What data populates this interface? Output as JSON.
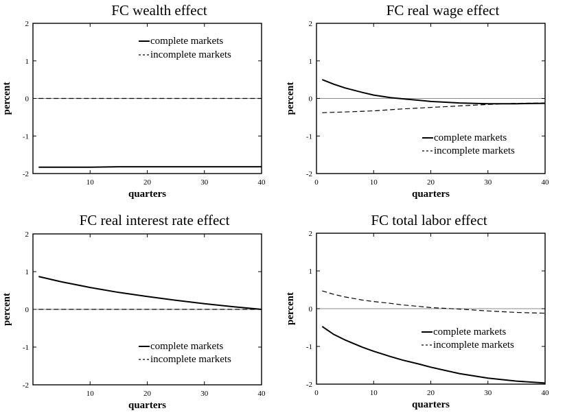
{
  "chart_data": [
    {
      "type": "line",
      "title": "FC wealth effect",
      "xlabel": "quarters",
      "ylabel": "percent",
      "xlim": [
        0,
        40
      ],
      "ylim": [
        -2,
        2
      ],
      "xticks": [
        "10",
        "20",
        "30",
        "40"
      ],
      "yticks": [
        "2",
        "1",
        "0",
        "-1",
        "-2"
      ],
      "legend_position": "top-right",
      "legend": [
        "complete markets",
        "incomplete markets"
      ],
      "series": [
        {
          "name": "complete markets",
          "style": "solid",
          "x": [
            1,
            5,
            10,
            15,
            20,
            25,
            30,
            35,
            40
          ],
          "y": [
            -1.83,
            -1.83,
            -1.83,
            -1.82,
            -1.82,
            -1.82,
            -1.82,
            -1.82,
            -1.82
          ]
        },
        {
          "name": "incomplete markets",
          "style": "dashed",
          "x": [
            1,
            5,
            10,
            15,
            20,
            25,
            30,
            35,
            40
          ],
          "y": [
            0,
            0,
            0,
            0,
            0,
            0,
            0,
            0,
            0
          ]
        }
      ]
    },
    {
      "type": "line",
      "title": "FC real wage effect",
      "xlabel": "quarters",
      "ylabel": "percent",
      "xlim": [
        0,
        40
      ],
      "ylim": [
        -2,
        2
      ],
      "xticks": [
        "0",
        "10",
        "20",
        "30",
        "40"
      ],
      "yticks": [
        "2",
        "1",
        "0",
        "-1",
        "-2"
      ],
      "legend_position": "bottom-right",
      "legend": [
        "complete markets",
        "incomplete markets"
      ],
      "series": [
        {
          "name": "complete markets",
          "style": "solid",
          "x": [
            1,
            3,
            5,
            8,
            10,
            13,
            15,
            18,
            20,
            25,
            30,
            35,
            40
          ],
          "y": [
            0.5,
            0.38,
            0.28,
            0.16,
            0.09,
            0.02,
            -0.01,
            -0.05,
            -0.08,
            -0.12,
            -0.14,
            -0.14,
            -0.13
          ]
        },
        {
          "name": "incomplete markets",
          "style": "dashed",
          "x": [
            1,
            5,
            10,
            15,
            20,
            25,
            30,
            35,
            40
          ],
          "y": [
            -0.38,
            -0.36,
            -0.33,
            -0.28,
            -0.24,
            -0.2,
            -0.16,
            -0.13,
            -0.12
          ]
        }
      ]
    },
    {
      "type": "line",
      "title": "FC real interest rate effect",
      "xlabel": "quarters",
      "ylabel": "percent",
      "xlim": [
        0,
        40
      ],
      "ylim": [
        -2,
        2
      ],
      "xticks": [
        "10",
        "20",
        "30",
        "40"
      ],
      "yticks": [
        "2",
        "1",
        "0",
        "-1",
        "-2"
      ],
      "legend_position": "bottom-right",
      "legend": [
        "complete markets",
        "incomplete markets"
      ],
      "series": [
        {
          "name": "complete markets",
          "style": "solid",
          "x": [
            1,
            5,
            10,
            15,
            20,
            25,
            30,
            35,
            40
          ],
          "y": [
            0.87,
            0.73,
            0.58,
            0.45,
            0.34,
            0.24,
            0.15,
            0.07,
            0.0
          ]
        },
        {
          "name": "incomplete markets",
          "style": "dashed",
          "x": [
            1,
            5,
            10,
            15,
            20,
            25,
            30,
            35,
            40
          ],
          "y": [
            0,
            0,
            0,
            0,
            0,
            0,
            0,
            0,
            0
          ]
        }
      ]
    },
    {
      "type": "line",
      "title": "FC total labor effect",
      "xlabel": "quarters",
      "ylabel": "percent",
      "xlim": [
        0,
        40
      ],
      "ylim": [
        -2,
        2
      ],
      "xticks": [
        "0",
        "10",
        "20",
        "30",
        "40"
      ],
      "yticks": [
        "2",
        "1",
        "0",
        "-1",
        "-2"
      ],
      "legend_position": "right",
      "legend": [
        "complete markets",
        "incomplete markets"
      ],
      "series": [
        {
          "name": "complete markets",
          "style": "solid",
          "x": [
            1,
            3,
            5,
            8,
            10,
            13,
            15,
            18,
            20,
            25,
            30,
            35,
            40
          ],
          "y": [
            -0.47,
            -0.68,
            -0.83,
            -1.02,
            -1.13,
            -1.27,
            -1.36,
            -1.47,
            -1.55,
            -1.72,
            -1.84,
            -1.92,
            -1.97
          ]
        },
        {
          "name": "incomplete markets",
          "style": "dashed",
          "x": [
            1,
            3,
            5,
            8,
            10,
            13,
            15,
            18,
            20,
            25,
            30,
            35,
            40
          ],
          "y": [
            0.47,
            0.38,
            0.31,
            0.23,
            0.19,
            0.14,
            0.1,
            0.06,
            0.03,
            -0.01,
            -0.06,
            -0.1,
            -0.12
          ]
        }
      ]
    }
  ]
}
